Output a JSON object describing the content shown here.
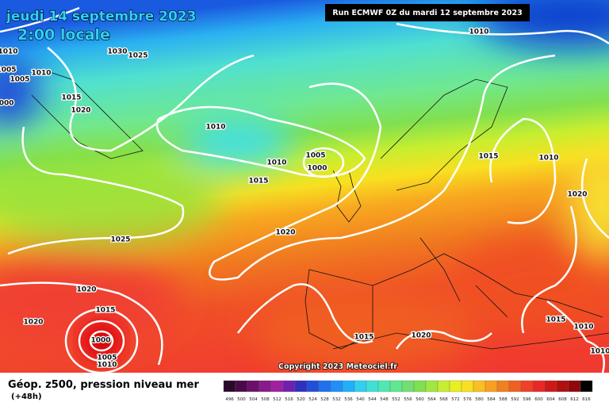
{
  "header": {
    "date": "jeudi 14 septembre 2023",
    "time": "2:00 locale",
    "run": "Run ECMWF 0Z du mardi 12 septembre 2023"
  },
  "isobar_labels": [
    "1010",
    "1030",
    "1025",
    "1010",
    "1005",
    "1005",
    "1010",
    "1015",
    "1020",
    "1000",
    "1010",
    "1010",
    "1005",
    "1000",
    "1015",
    "1015",
    "1010",
    "1020",
    "1025",
    "1020",
    "1020",
    "1015",
    "1020",
    "1000",
    "1005",
    "1010",
    "1015",
    "1020",
    "1015",
    "1010",
    "1010"
  ],
  "footer": {
    "title": "Géop. z500, pression niveau mer",
    "lead": "(+48h)",
    "copyright": "Copyright 2023 Meteociel.fr"
  },
  "legend": {
    "labels": [
      "496",
      "500",
      "504",
      "508",
      "512",
      "516",
      "520",
      "524",
      "528",
      "532",
      "536",
      "540",
      "544",
      "548",
      "552",
      "556",
      "560",
      "564",
      "568",
      "572",
      "576",
      "580",
      "584",
      "588",
      "592",
      "596",
      "600",
      "604",
      "608",
      "612",
      "616"
    ]
  }
}
